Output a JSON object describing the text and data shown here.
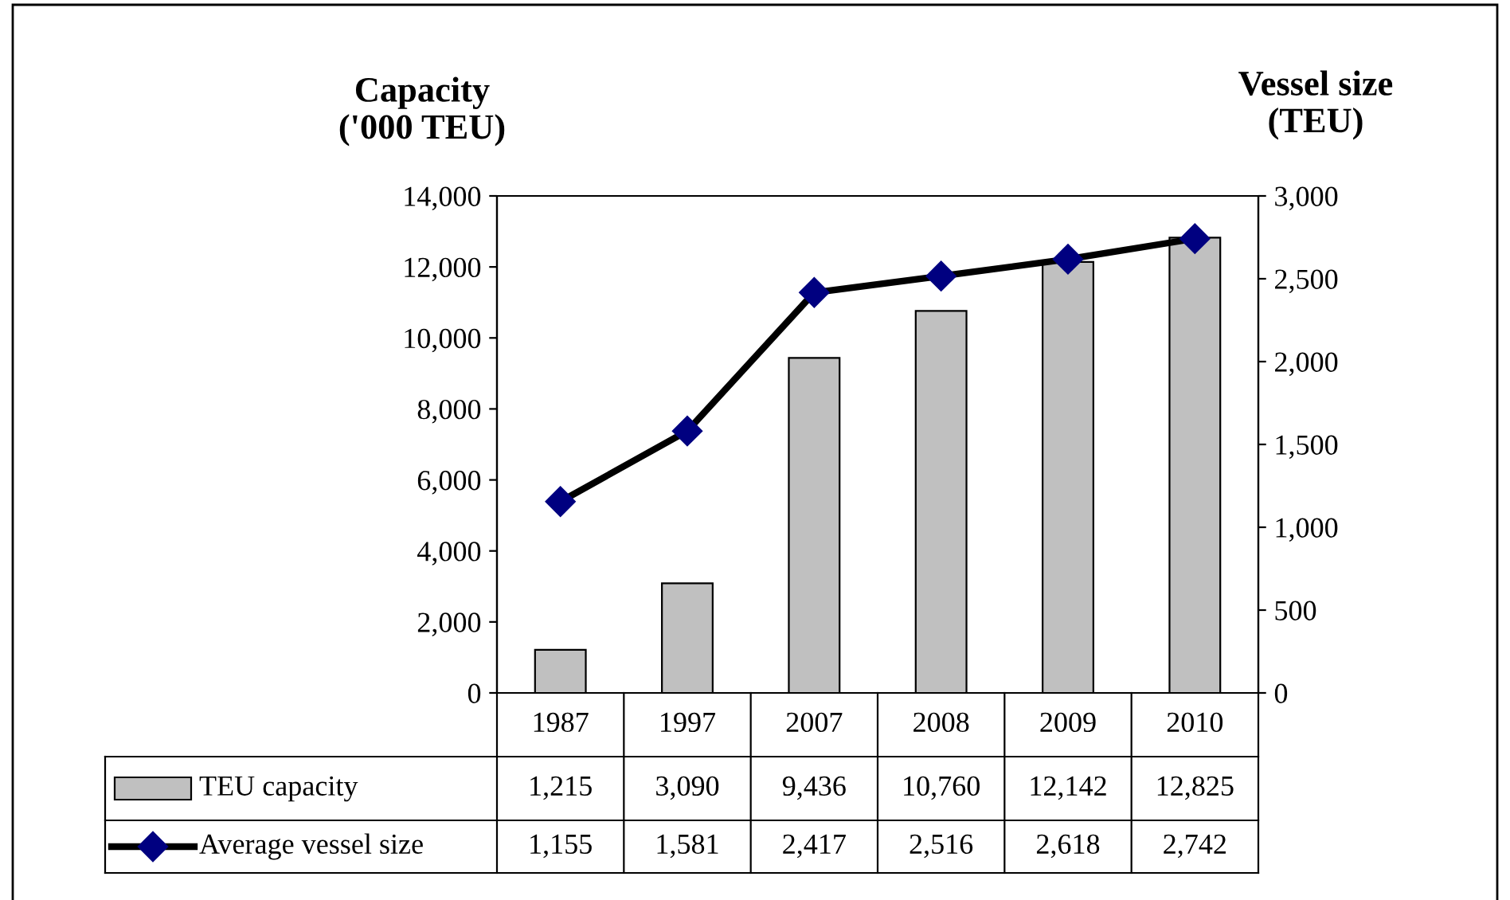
{
  "chart_data": {
    "type": "bar",
    "categories": [
      "1987",
      "1997",
      "2007",
      "2008",
      "2009",
      "2010"
    ],
    "ylabel": "Capacity\n('000 TEU)",
    "y2label": "Vessel size\n(TEU)",
    "ylim": [
      0,
      14000
    ],
    "yticks": [
      {
        "value": 0,
        "label": "0"
      },
      {
        "value": 2000,
        "label": "2,000"
      },
      {
        "value": 4000,
        "label": "4,000"
      },
      {
        "value": 6000,
        "label": "6,000"
      },
      {
        "value": 8000,
        "label": "8,000"
      },
      {
        "value": 10000,
        "label": "10,000"
      },
      {
        "value": 12000,
        "label": "12,000"
      },
      {
        "value": 14000,
        "label": "14,000"
      }
    ],
    "y2lim": [
      0,
      3000
    ],
    "y2ticks": [
      {
        "value": 0,
        "label": "0"
      },
      {
        "value": 500,
        "label": "500"
      },
      {
        "value": 1000,
        "label": "1,000"
      },
      {
        "value": 1500,
        "label": "1,500"
      },
      {
        "value": 2000,
        "label": "2,000"
      },
      {
        "value": 2500,
        "label": "2,500"
      },
      {
        "value": 3000,
        "label": "3,000"
      }
    ],
    "series": [
      {
        "name": "TEU capacity",
        "color": "#c0c0c0",
        "values": [
          1215,
          3090,
          9436,
          10760,
          12142,
          12825
        ],
        "value_labels": [
          "1,215",
          "3,090",
          "9,436",
          "10,760",
          "12,142",
          "12,825"
        ]
      },
      {
        "name": "Average vessel size",
        "type": "line",
        "axis": "y2",
        "color": "#000080",
        "marker": "diamond",
        "values": [
          1155,
          1581,
          2417,
          2516,
          2618,
          2742
        ],
        "value_labels": [
          "1,155",
          "1,581",
          "2,417",
          "2,516",
          "2,618",
          "2,742"
        ]
      }
    ],
    "legend": "bottom",
    "grid": false
  }
}
